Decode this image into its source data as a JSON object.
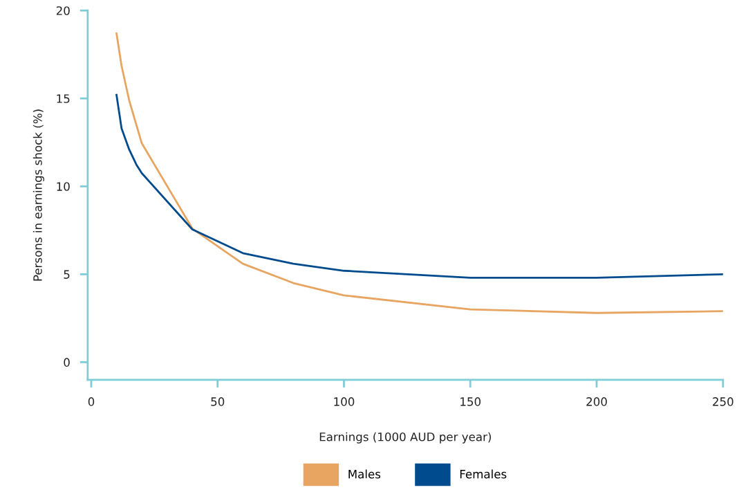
{
  "chart_data": {
    "type": "line",
    "xlabel": "Earnings (1000 AUD per year)",
    "ylabel": "Persons in earnings shock (%)",
    "xlim": [
      -1.4,
      250
    ],
    "ylim": [
      -1,
      20
    ],
    "xticks": [
      0,
      50,
      100,
      150,
      200,
      250
    ],
    "yticks": [
      0,
      5,
      10,
      15,
      20
    ],
    "grid": false,
    "legend": "bottom",
    "marker": "none",
    "line_style": "solid",
    "series": [
      {
        "name": "Males",
        "color": "#e8a461",
        "x": [
          10,
          12,
          15,
          20,
          40,
          60,
          80,
          100,
          150,
          200,
          250
        ],
        "values": [
          18.7,
          16.85,
          14.9,
          12.45,
          7.6,
          5.6,
          4.5,
          3.8,
          3.0,
          2.8,
          2.9
        ]
      },
      {
        "name": "Females",
        "color": "#004b8d",
        "x": [
          10,
          12,
          15,
          18,
          20,
          40,
          60,
          80,
          100,
          150,
          200,
          250
        ],
        "values": [
          15.2,
          13.3,
          12.1,
          11.2,
          10.75,
          7.55,
          6.2,
          5.6,
          5.2,
          4.8,
          4.8,
          5.0
        ]
      }
    ]
  }
}
